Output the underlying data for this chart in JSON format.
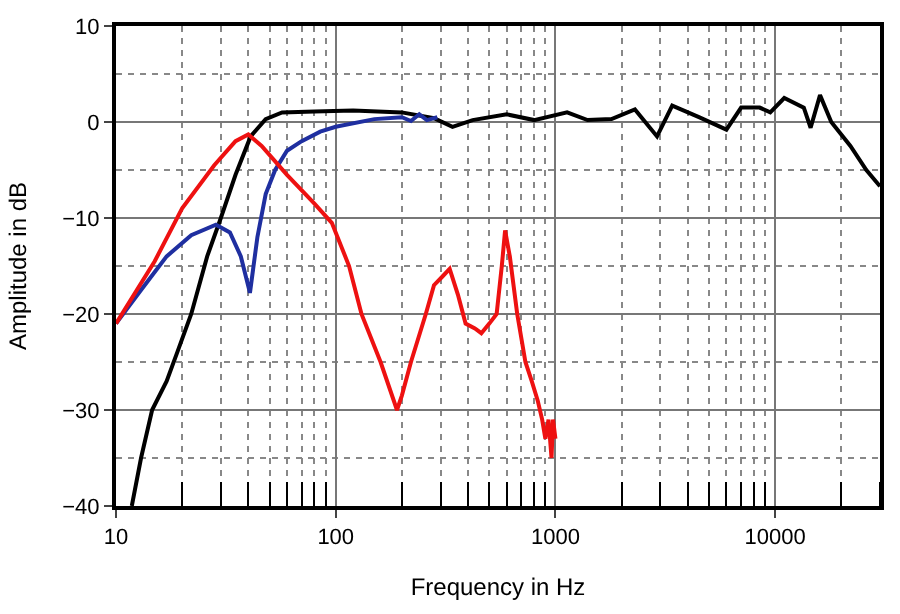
{
  "chart_data": {
    "type": "line",
    "xlabel": "Frequency in Hz",
    "ylabel": "Amplitude in dB",
    "log": "x",
    "grid": true,
    "marker": "none",
    "line_style": "solid",
    "xlim": [
      10,
      30000
    ],
    "xticks": [
      10,
      100,
      1000,
      10000
    ],
    "ylim": [
      -40,
      10
    ],
    "yticks": [
      10,
      0,
      -10,
      -20,
      -30,
      -40
    ],
    "series": [
      {
        "color": "#000000",
        "x": [
          11.8,
          13,
          14.6,
          17,
          19,
          22,
          26,
          30,
          35,
          41,
          48,
          57,
          80,
          120,
          200,
          280,
          340,
          420,
          600,
          800,
          1130,
          1400,
          1800,
          2300,
          2900,
          3400,
          4500,
          6000,
          7000,
          8500,
          9500,
          11000,
          13500,
          14500,
          16000,
          18000,
          22000,
          26000,
          30000
        ],
        "values": [
          -40,
          -35,
          -30,
          -27,
          -24,
          -20,
          -14,
          -10,
          -5.5,
          -1.5,
          0.3,
          1,
          1.1,
          1.2,
          1,
          0.4,
          -0.5,
          0.2,
          0.8,
          0.2,
          1,
          0.2,
          0.3,
          1.3,
          -1.5,
          1.7,
          0.5,
          -0.8,
          1.5,
          1.5,
          1,
          2.5,
          1.5,
          -0.6,
          2.8,
          0,
          -2.5,
          -5,
          -6.7
        ]
      },
      {
        "color": "#1f2fa0",
        "x": [
          10,
          13,
          17,
          22,
          28.5,
          33,
          37,
          40.7,
          44,
          48,
          53,
          60,
          70,
          85,
          100,
          150,
          200,
          220,
          240,
          260,
          290
        ],
        "values": [
          -21,
          -17.5,
          -14,
          -11.8,
          -10.7,
          -11.5,
          -14,
          -17.8,
          -12,
          -7.5,
          -5,
          -3,
          -2,
          -1,
          -0.5,
          0.3,
          0.5,
          0.1,
          0.8,
          0.2,
          0.5
        ]
      },
      {
        "color": "#ee1111",
        "x": [
          10,
          15,
          20,
          28,
          35,
          40,
          46,
          60,
          80,
          96,
          115,
          131,
          160,
          190,
          200,
          220,
          257,
          280,
          303,
          330,
          360,
          390,
          430,
          460,
          500,
          540,
          570,
          590,
          620,
          670,
          730,
          780,
          830,
          870,
          900,
          930,
          960,
          975,
          1000
        ],
        "values": [
          -21,
          -14.5,
          -9,
          -4.5,
          -2,
          -1.3,
          -2.5,
          -5.5,
          -8.5,
          -10.5,
          -15,
          -20,
          -25,
          -30,
          -28.5,
          -25,
          -20,
          -17,
          -16.2,
          -15.3,
          -18,
          -21,
          -21.5,
          -22,
          -21,
          -20,
          -15,
          -11.3,
          -14,
          -20,
          -25,
          -27,
          -29,
          -31,
          -33,
          -31,
          -35,
          -31,
          -33
        ]
      }
    ]
  }
}
